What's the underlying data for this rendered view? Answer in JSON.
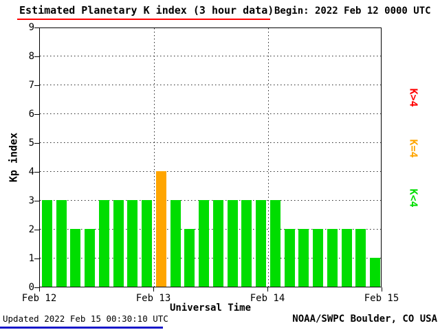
{
  "header": {
    "title": "Estimated Planetary K index (3 hour data)",
    "begin": "Begin: 2022 Feb 12 0000 UTC"
  },
  "footer": {
    "updated": "Updated 2022 Feb 15 00:30:10 UTC",
    "source": "NOAA/SWPC Boulder, CO USA"
  },
  "legend": [
    {
      "label": "K>4",
      "color": "#ff0000"
    },
    {
      "label": "K=4",
      "color": "#ffa500"
    },
    {
      "label": "K<4",
      "color": "#00dd00"
    }
  ],
  "chart_data": {
    "type": "bar",
    "title": "Estimated Planetary K index (3 hour data)",
    "begin": "2022 Feb 12 0000 UTC",
    "xlabel": "Universal Time",
    "ylabel": "Kp index",
    "ylim": [
      0,
      9
    ],
    "y_tick_labels": [
      "0",
      "1",
      "2",
      "3",
      "4",
      "5",
      "6",
      "7",
      "8",
      "9"
    ],
    "x_tick_labels": [
      "Feb 12",
      "Feb 13",
      "Feb 14",
      "Feb 15"
    ],
    "hours_per_bar": 3,
    "bars_per_day": 8,
    "values": [
      3,
      3,
      2,
      2,
      3,
      3,
      3,
      3,
      4,
      3,
      2,
      3,
      3,
      3,
      3,
      3,
      3,
      2,
      2,
      2,
      2,
      2,
      2,
      1
    ],
    "bar_colors": {
      "below4": "#00dd00",
      "equal4": "#ffa500",
      "above4": "#ff0000"
    },
    "grid": "dotted",
    "legend_position": "right"
  },
  "colors": {
    "title_underline": "#ff0000",
    "footer_underline": "#1717c9",
    "axis": "#000000",
    "background": "#ffffff"
  }
}
